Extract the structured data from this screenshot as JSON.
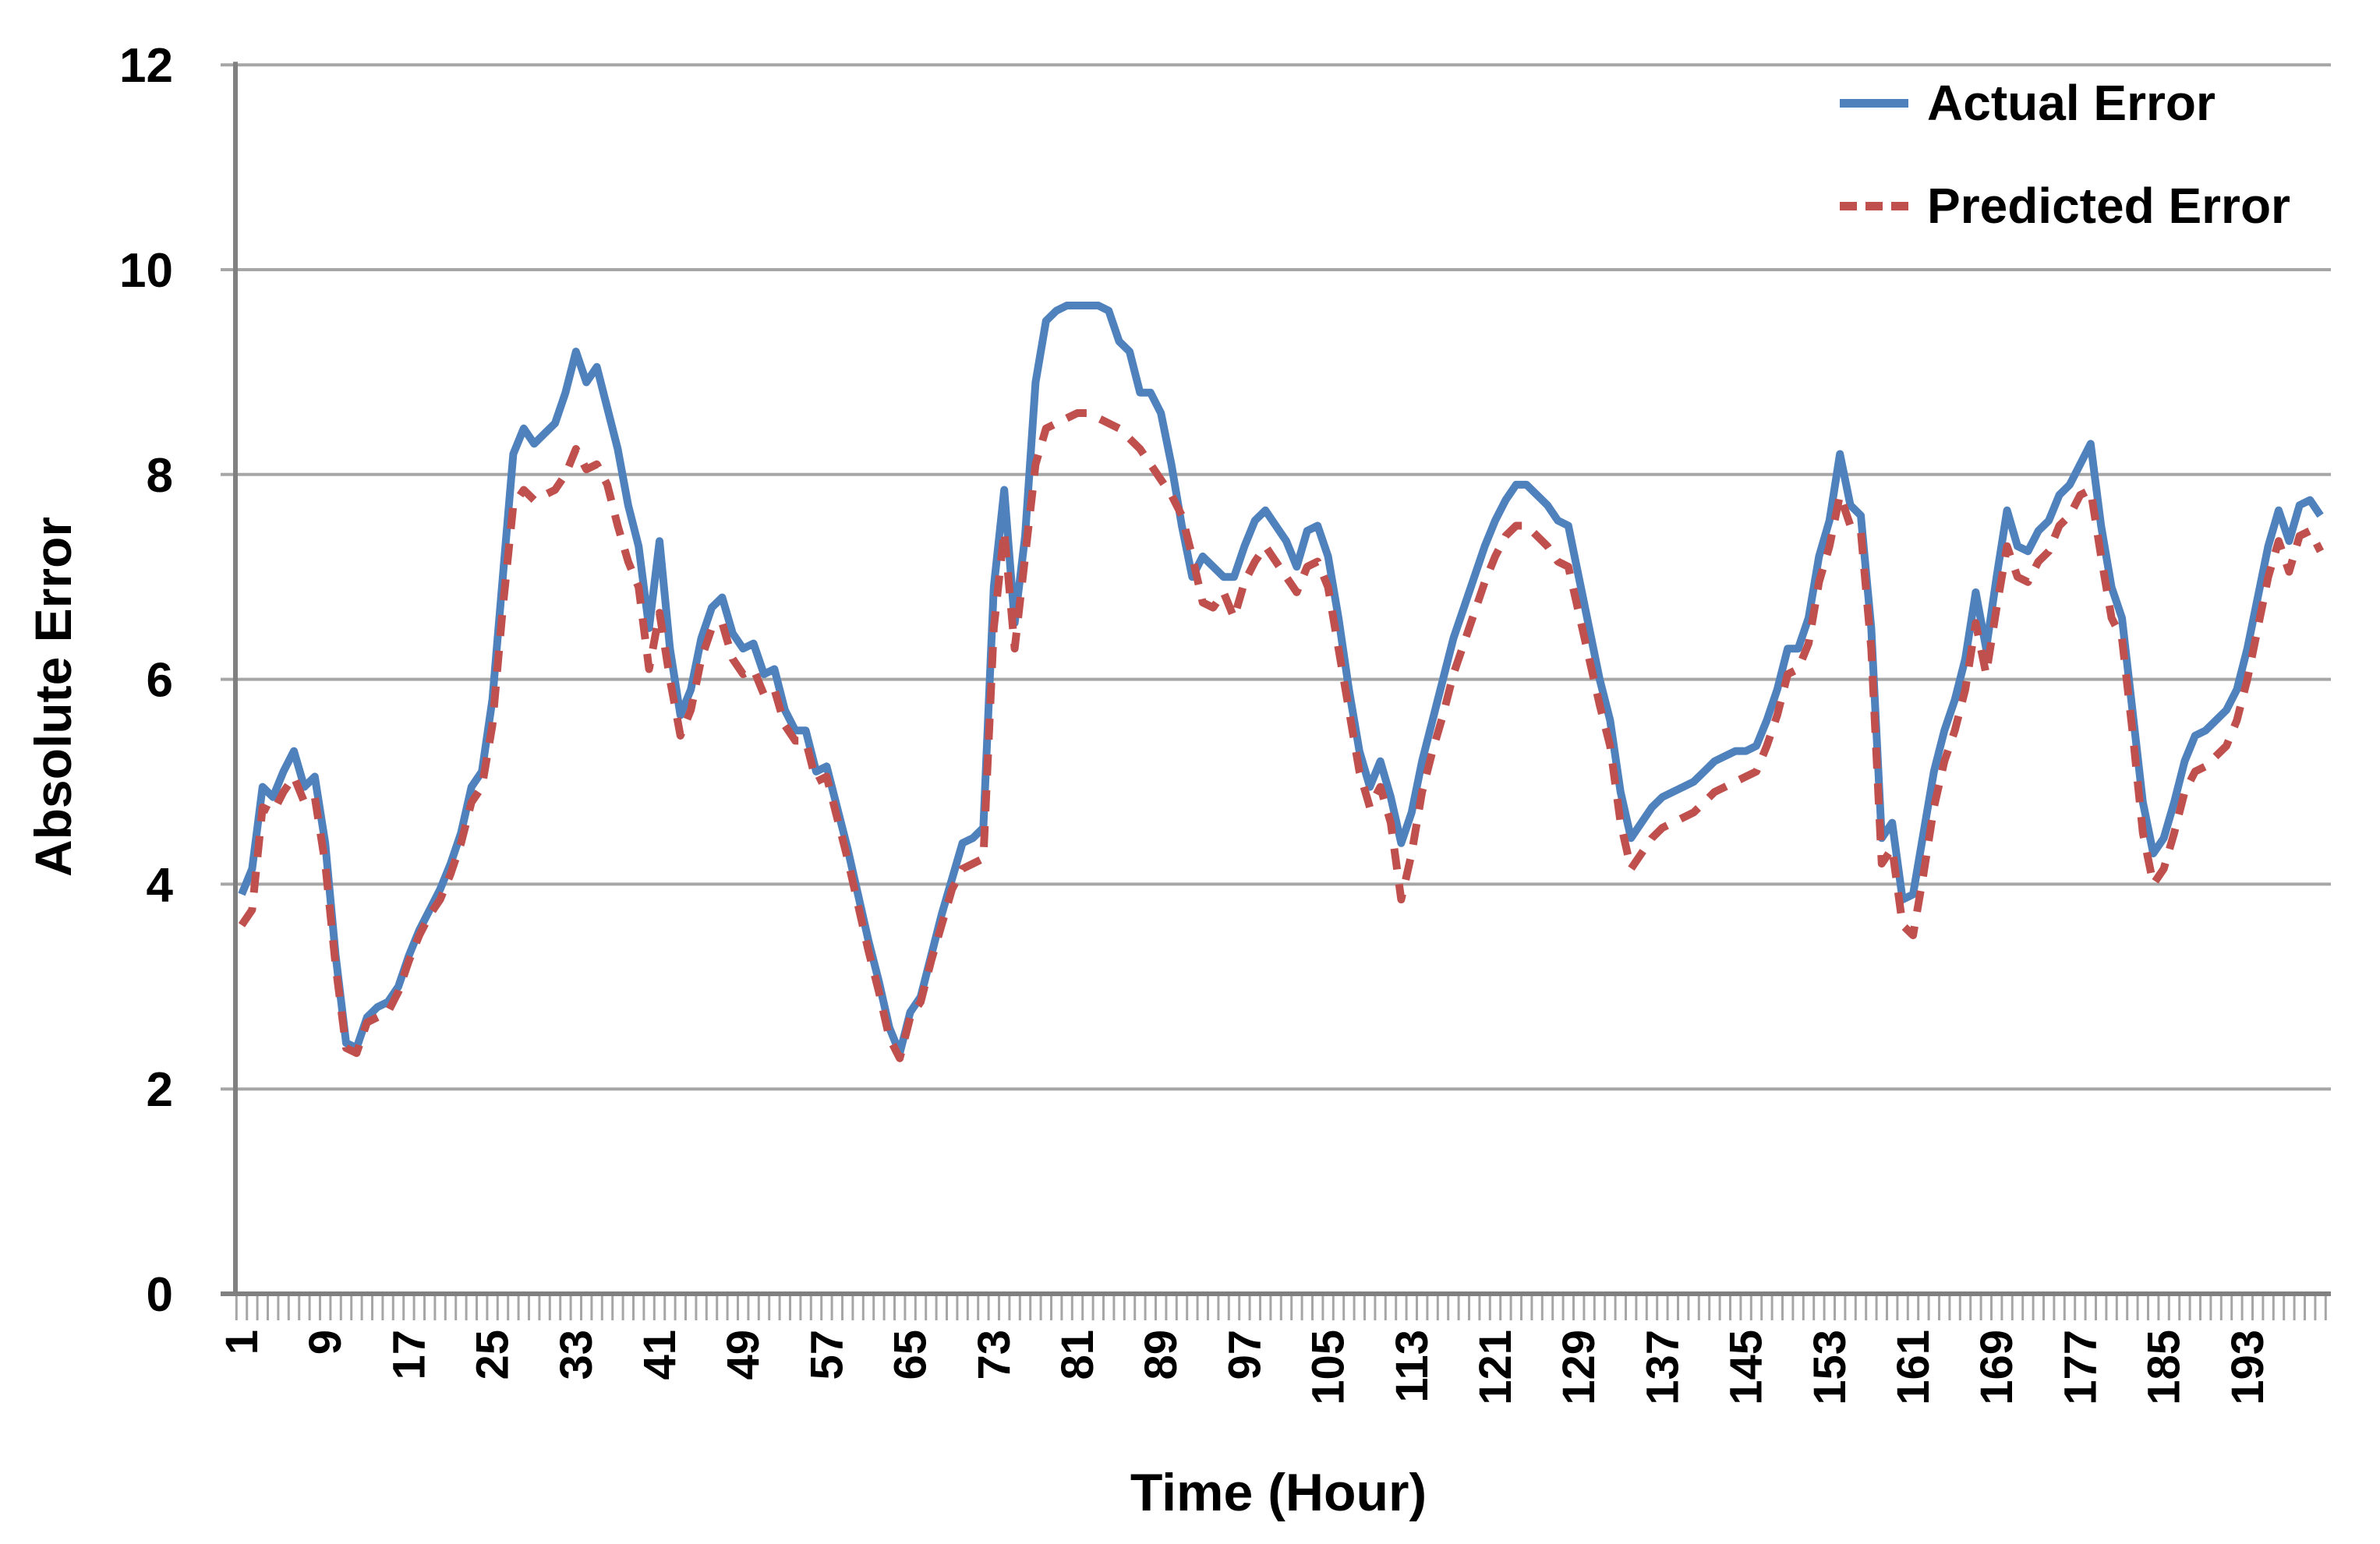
{
  "legend": {
    "items": [
      {
        "label": "Actual Error",
        "color": "#4F81BD",
        "line_style": "solid"
      },
      {
        "label": "Predicted Error",
        "color": "#C0504D",
        "line_style": "dashed"
      }
    ]
  },
  "chart_data": {
    "type": "line",
    "title": "",
    "xlabel": "Time (Hour)",
    "ylabel": "Absolute Error",
    "ylim": [
      0,
      12
    ],
    "ytick_step": 2,
    "ytick_labels": [
      "0",
      "2",
      "4",
      "6",
      "8",
      "10",
      "12"
    ],
    "x_start": 1,
    "n_points": 200,
    "x_tick_labels": [
      "1",
      "9",
      "17",
      "25",
      "33",
      "41",
      "49",
      "57",
      "65",
      "73",
      "81",
      "89",
      "97",
      "105",
      "113",
      "121",
      "129",
      "137",
      "145",
      "153",
      "161",
      "169",
      "177",
      "185",
      "193"
    ],
    "x_tick_label_interval": 8,
    "grid": "horizontal",
    "legend_position": "top-right-inside",
    "colors": {
      "grid": "#A6A6A6",
      "axis": "#808080",
      "tick": "#A6A6A6",
      "text": "#000000",
      "background": "#FFFFFF"
    },
    "series": [
      {
        "name": "Actual Error",
        "color": "#4F81BD",
        "dash": "solid",
        "values": [
          3.9,
          4.15,
          4.95,
          4.85,
          5.1,
          5.3,
          4.95,
          5.05,
          4.4,
          3.3,
          2.45,
          2.4,
          2.7,
          2.8,
          2.85,
          3.0,
          3.3,
          3.55,
          3.75,
          3.95,
          4.2,
          4.5,
          4.95,
          5.1,
          5.8,
          7.0,
          8.2,
          8.45,
          8.3,
          8.4,
          8.5,
          8.8,
          9.2,
          8.9,
          9.05,
          8.65,
          8.25,
          7.7,
          7.3,
          6.5,
          7.35,
          6.3,
          5.65,
          5.9,
          6.4,
          6.7,
          6.8,
          6.45,
          6.3,
          6.35,
          6.05,
          6.1,
          5.7,
          5.5,
          5.5,
          5.1,
          5.15,
          4.75,
          4.35,
          3.9,
          3.45,
          3.05,
          2.6,
          2.35,
          2.75,
          2.9,
          3.3,
          3.7,
          4.05,
          4.4,
          4.45,
          4.55,
          6.9,
          7.85,
          6.55,
          7.4,
          8.9,
          9.5,
          9.6,
          9.65,
          9.65,
          9.65,
          9.65,
          9.6,
          9.3,
          9.2,
          8.8,
          8.8,
          8.6,
          8.1,
          7.5,
          7.0,
          7.2,
          7.1,
          7.0,
          7.0,
          7.3,
          7.55,
          7.65,
          7.5,
          7.35,
          7.1,
          7.45,
          7.5,
          7.2,
          6.6,
          5.9,
          5.3,
          4.95,
          5.2,
          4.85,
          4.4,
          4.7,
          5.2,
          5.6,
          6.0,
          6.4,
          6.7,
          7.0,
          7.3,
          7.55,
          7.75,
          7.9,
          7.9,
          7.8,
          7.7,
          7.55,
          7.5,
          7.0,
          6.5,
          6.0,
          5.6,
          4.9,
          4.45,
          4.6,
          4.75,
          4.85,
          4.9,
          4.95,
          5.0,
          5.1,
          5.2,
          5.25,
          5.3,
          5.3,
          5.35,
          5.6,
          5.9,
          6.3,
          6.3,
          6.6,
          7.2,
          7.55,
          8.2,
          7.7,
          7.6,
          6.5,
          4.45,
          4.6,
          3.85,
          3.9,
          4.5,
          5.1,
          5.5,
          5.8,
          6.2,
          6.85,
          6.3,
          7.0,
          7.65,
          7.3,
          7.25,
          7.45,
          7.55,
          7.8,
          7.9,
          8.1,
          8.3,
          7.5,
          6.9,
          6.6,
          5.7,
          4.8,
          4.3,
          4.45,
          4.8,
          5.2,
          5.45,
          5.5,
          5.6,
          5.7,
          5.9,
          6.3,
          6.8,
          7.3,
          7.65,
          7.35,
          7.7,
          7.75,
          7.6
        ]
      },
      {
        "name": "Predicted Error",
        "color": "#C0504D",
        "dash": "dashed",
        "values": [
          3.6,
          3.75,
          4.75,
          4.7,
          4.9,
          5.05,
          4.8,
          4.85,
          4.2,
          3.2,
          2.4,
          2.35,
          2.65,
          2.7,
          2.75,
          2.95,
          3.25,
          3.5,
          3.7,
          3.85,
          4.1,
          4.4,
          4.8,
          4.95,
          5.55,
          6.7,
          7.7,
          7.85,
          7.75,
          7.8,
          7.85,
          8.0,
          8.25,
          8.05,
          8.1,
          7.9,
          7.5,
          7.15,
          6.9,
          6.1,
          6.65,
          6.0,
          5.45,
          5.7,
          6.2,
          6.5,
          6.55,
          6.2,
          6.05,
          6.1,
          5.85,
          5.9,
          5.55,
          5.4,
          5.4,
          5.0,
          5.05,
          4.65,
          4.25,
          3.8,
          3.35,
          2.95,
          2.5,
          2.3,
          2.7,
          2.85,
          3.25,
          3.6,
          3.95,
          4.15,
          4.2,
          4.25,
          6.5,
          7.45,
          6.3,
          7.2,
          8.1,
          8.45,
          8.5,
          8.55,
          8.6,
          8.6,
          8.55,
          8.5,
          8.45,
          8.35,
          8.25,
          8.1,
          7.95,
          7.8,
          7.6,
          7.2,
          6.75,
          6.7,
          6.85,
          6.6,
          6.95,
          7.15,
          7.3,
          7.15,
          7.0,
          6.85,
          7.1,
          7.15,
          6.9,
          6.3,
          5.7,
          5.1,
          4.75,
          4.95,
          4.6,
          3.85,
          4.3,
          4.9,
          5.3,
          5.65,
          6.05,
          6.35,
          6.65,
          6.95,
          7.2,
          7.4,
          7.5,
          7.5,
          7.4,
          7.3,
          7.15,
          7.1,
          6.65,
          6.2,
          5.75,
          5.35,
          4.6,
          4.15,
          4.3,
          4.45,
          4.55,
          4.6,
          4.65,
          4.7,
          4.8,
          4.9,
          4.95,
          5.0,
          5.05,
          5.1,
          5.35,
          5.65,
          6.05,
          6.1,
          6.35,
          6.95,
          7.3,
          7.8,
          7.5,
          7.45,
          6.3,
          4.2,
          4.35,
          3.6,
          3.5,
          4.1,
          4.75,
          5.2,
          5.5,
          5.9,
          6.55,
          6.05,
          6.7,
          7.3,
          7.0,
          6.95,
          7.15,
          7.25,
          7.5,
          7.6,
          7.8,
          7.85,
          7.2,
          6.6,
          6.4,
          5.5,
          4.5,
          4.0,
          4.15,
          4.5,
          4.9,
          5.1,
          5.15,
          5.25,
          5.35,
          5.6,
          6.0,
          6.5,
          7.0,
          7.35,
          7.05,
          7.4,
          7.45,
          7.25
        ]
      }
    ]
  }
}
